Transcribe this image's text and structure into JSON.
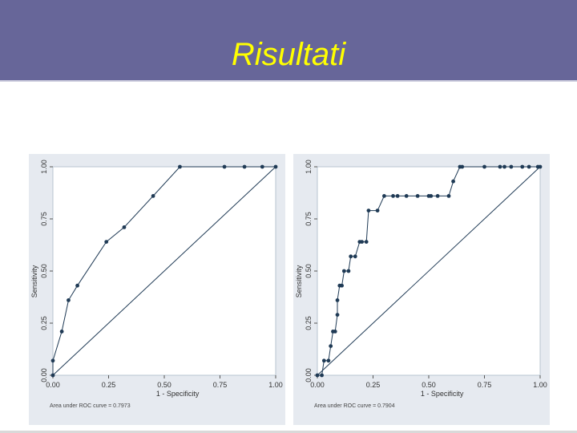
{
  "slide": {
    "title": "Risultati",
    "colors": {
      "header_bg": "#676699",
      "title": "#ffff00",
      "panel_bg": "#e6eaf0",
      "series": "#1f3a55"
    }
  },
  "chart_data": [
    {
      "type": "line",
      "xlabel": "1 - Specificity",
      "ylabel": "Sensitivity",
      "xlim": [
        0,
        1
      ],
      "ylim": [
        0,
        1
      ],
      "xticks": [
        "0.00",
        "0.25",
        "0.50",
        "0.75",
        "1.00"
      ],
      "yticks": [
        "0.00",
        "0.25",
        "0.50",
        "0.75",
        "1.00"
      ],
      "annotation": "Area under ROC curve = 0.7973",
      "series": [
        {
          "x": [
            0.0,
            0.0,
            0.04,
            0.07,
            0.11,
            0.24,
            0.32,
            0.45,
            0.57,
            0.77,
            0.86,
            0.94,
            1.0
          ],
          "y": [
            0.0,
            0.07,
            0.21,
            0.36,
            0.43,
            0.64,
            0.71,
            0.86,
            1.0,
            1.0,
            1.0,
            1.0,
            1.0
          ]
        },
        {
          "x": [
            0,
            1
          ],
          "y": [
            0,
            1
          ]
        }
      ]
    },
    {
      "type": "line",
      "xlabel": "1 - Specificity",
      "ylabel": "Sensitivity",
      "xlim": [
        0,
        1
      ],
      "ylim": [
        0,
        1
      ],
      "xticks": [
        "0.00",
        "0.25",
        "0.50",
        "0.75",
        "1.00"
      ],
      "yticks": [
        "0.00",
        "0.25",
        "0.50",
        "0.75",
        "1.00"
      ],
      "annotation": "Area under ROC curve = 0.7904",
      "series": [
        {
          "x": [
            0.0,
            0.02,
            0.03,
            0.05,
            0.06,
            0.07,
            0.08,
            0.09,
            0.09,
            0.1,
            0.11,
            0.12,
            0.14,
            0.15,
            0.17,
            0.19,
            0.2,
            0.22,
            0.23,
            0.27,
            0.3,
            0.34,
            0.36,
            0.4,
            0.45,
            0.5,
            0.51,
            0.54,
            0.59,
            0.61,
            0.64,
            0.65,
            0.75,
            0.82,
            0.84,
            0.87,
            0.92,
            0.95,
            0.99,
            1.0
          ],
          "y": [
            0.0,
            0.0,
            0.07,
            0.07,
            0.14,
            0.21,
            0.21,
            0.29,
            0.36,
            0.43,
            0.43,
            0.5,
            0.5,
            0.57,
            0.57,
            0.64,
            0.64,
            0.64,
            0.79,
            0.79,
            0.86,
            0.86,
            0.86,
            0.86,
            0.86,
            0.86,
            0.86,
            0.86,
            0.86,
            0.93,
            1.0,
            1.0,
            1.0,
            1.0,
            1.0,
            1.0,
            1.0,
            1.0,
            1.0,
            1.0
          ]
        },
        {
          "x": [
            0,
            1
          ],
          "y": [
            0,
            1
          ]
        }
      ]
    }
  ]
}
